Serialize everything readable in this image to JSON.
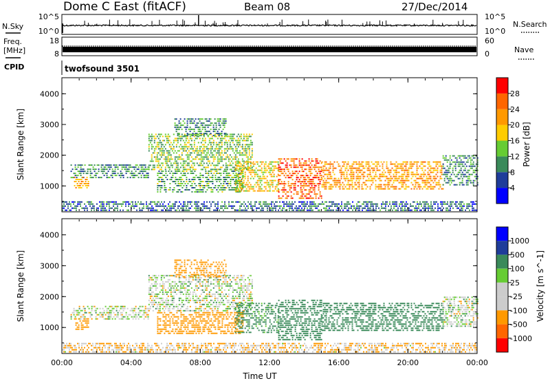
{
  "header": {
    "radar": "Dome C East (fitACF)",
    "beam": "Beam 08",
    "date": "27/Dec/2014"
  },
  "nsky_panel": {
    "left_label": "N.Sky",
    "right_label": "N.Search",
    "left_ticks": [
      "10^5",
      "10^0"
    ],
    "right_ticks": [
      "10^5",
      "10^0"
    ]
  },
  "freq_panel": {
    "left_label_1": "Freq.",
    "left_label_2": "[MHz]",
    "right_label": "Nave",
    "left_ticks": [
      "18",
      "8"
    ],
    "right_ticks": [
      "60",
      "0"
    ]
  },
  "cpid_panel": {
    "label": "CPID",
    "value": "twofsound 3501"
  },
  "colors": {
    "power": [
      "#0000ff",
      "#1f3d9a",
      "#3a8a5a",
      "#66cc33",
      "#ffcc00",
      "#ff9900",
      "#ff6600",
      "#ff0000"
    ],
    "velocity": [
      "#ff0000",
      "#ff6600",
      "#ff9900",
      "#cccccc",
      "#cccccc",
      "#66cc33",
      "#3a8a5a",
      "#1f3d9a",
      "#0000ff"
    ]
  },
  "chart_data": [
    {
      "type": "heatmap",
      "title": "",
      "xlabel": "",
      "ylabel": "Slant Range [km]",
      "xlim": [
        "00:00",
        "00:00"
      ],
      "ylim": [
        180,
        4500
      ],
      "x_ticks": [
        "00:00",
        "04:00",
        "08:00",
        "12:00",
        "16:00",
        "20:00",
        "00:00"
      ],
      "y_ticks": [
        "1000",
        "2000",
        "3000",
        "4000"
      ],
      "colorbar": {
        "label": "Power [dB]",
        "range": [
          0,
          32
        ],
        "ticks": [
          "4",
          "8",
          "12",
          "16",
          "20",
          "24",
          "28"
        ]
      },
      "echo_regions": [
        {
          "t0": 0.0,
          "t1": 24.0,
          "r0": 200,
          "r1": 500,
          "value": 8
        },
        {
          "t0": 0.5,
          "t1": 5.0,
          "r0": 1250,
          "r1": 1700,
          "value": 10
        },
        {
          "t0": 0.7,
          "t1": 1.5,
          "r0": 900,
          "r1": 1300,
          "value": 22
        },
        {
          "t0": 5.0,
          "t1": 11.0,
          "r0": 1500,
          "r1": 2700,
          "value": 14
        },
        {
          "t0": 6.5,
          "t1": 9.5,
          "r0": 2600,
          "r1": 3200,
          "value": 10
        },
        {
          "t0": 5.5,
          "t1": 10.5,
          "r0": 800,
          "r1": 1500,
          "value": 12
        },
        {
          "t0": 10.0,
          "t1": 12.5,
          "r0": 800,
          "r1": 1800,
          "value": 18
        },
        {
          "t0": 12.5,
          "t1": 15.0,
          "r0": 600,
          "r1": 1900,
          "value": 26
        },
        {
          "t0": 15.0,
          "t1": 22.0,
          "r0": 900,
          "r1": 1800,
          "value": 22
        },
        {
          "t0": 22.0,
          "t1": 24.0,
          "r0": 1000,
          "r1": 2000,
          "value": 10
        }
      ]
    },
    {
      "type": "heatmap",
      "title": "",
      "xlabel": "Time UT",
      "ylabel": "Slant Range [km]",
      "xlim": [
        "00:00",
        "00:00"
      ],
      "ylim": [
        180,
        4500
      ],
      "x_ticks": [
        "00:00",
        "04:00",
        "08:00",
        "12:00",
        "16:00",
        "20:00",
        "00:00"
      ],
      "y_ticks": [
        "1000",
        "2000",
        "3000",
        "4000"
      ],
      "colorbar": {
        "label": "Velocity [m s^-1]",
        "ticks": [
          "1000",
          "500",
          "100",
          "25",
          "-25",
          "-100",
          "-500",
          "-1000"
        ]
      },
      "echo_regions": [
        {
          "t0": 0.0,
          "t1": 24.0,
          "r0": 200,
          "r1": 500,
          "value": -100
        },
        {
          "t0": 0.5,
          "t1": 5.0,
          "r0": 1250,
          "r1": 1700,
          "value": 0
        },
        {
          "t0": 0.7,
          "t1": 1.5,
          "r0": 900,
          "r1": 1300,
          "value": -300
        },
        {
          "t0": 5.0,
          "t1": 11.0,
          "r0": 1500,
          "r1": 2700,
          "value": 0
        },
        {
          "t0": 6.5,
          "t1": 9.5,
          "r0": 2600,
          "r1": 3200,
          "value": -200
        },
        {
          "t0": 5.5,
          "t1": 10.5,
          "r0": 800,
          "r1": 1500,
          "value": -300
        },
        {
          "t0": 10.0,
          "t1": 12.5,
          "r0": 800,
          "r1": 1800,
          "value": 200
        },
        {
          "t0": 12.5,
          "t1": 15.0,
          "r0": 600,
          "r1": 1900,
          "value": 300
        },
        {
          "t0": 15.0,
          "t1": 22.0,
          "r0": 900,
          "r1": 1800,
          "value": 300
        },
        {
          "t0": 22.0,
          "t1": 24.0,
          "r0": 1000,
          "r1": 2000,
          "value": 0
        }
      ]
    }
  ]
}
